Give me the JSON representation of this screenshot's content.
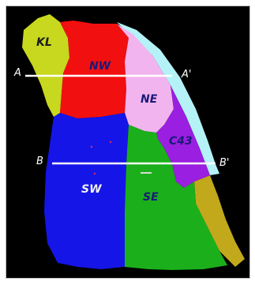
{
  "regions": [
    {
      "id": "KL",
      "label": "KL",
      "color": "#c7d81f"
    },
    {
      "id": "NW",
      "label": "NW",
      "color": "#f20f0f"
    },
    {
      "id": "NE",
      "label": "NE",
      "color": "#f2b4ee"
    },
    {
      "id": "C43",
      "label": "C43",
      "color": "#9a1fe0"
    },
    {
      "id": "SW",
      "label": "SW",
      "color": "#1515e8"
    },
    {
      "id": "SE",
      "label": "SE",
      "color": "#1bb01b"
    }
  ],
  "edge_colors": {
    "east_rim": "#b4f2f7",
    "south_rim": "#c2a81b"
  },
  "sections": [
    {
      "start": "A",
      "end": "A'"
    },
    {
      "start": "B",
      "end": "B'"
    }
  ]
}
